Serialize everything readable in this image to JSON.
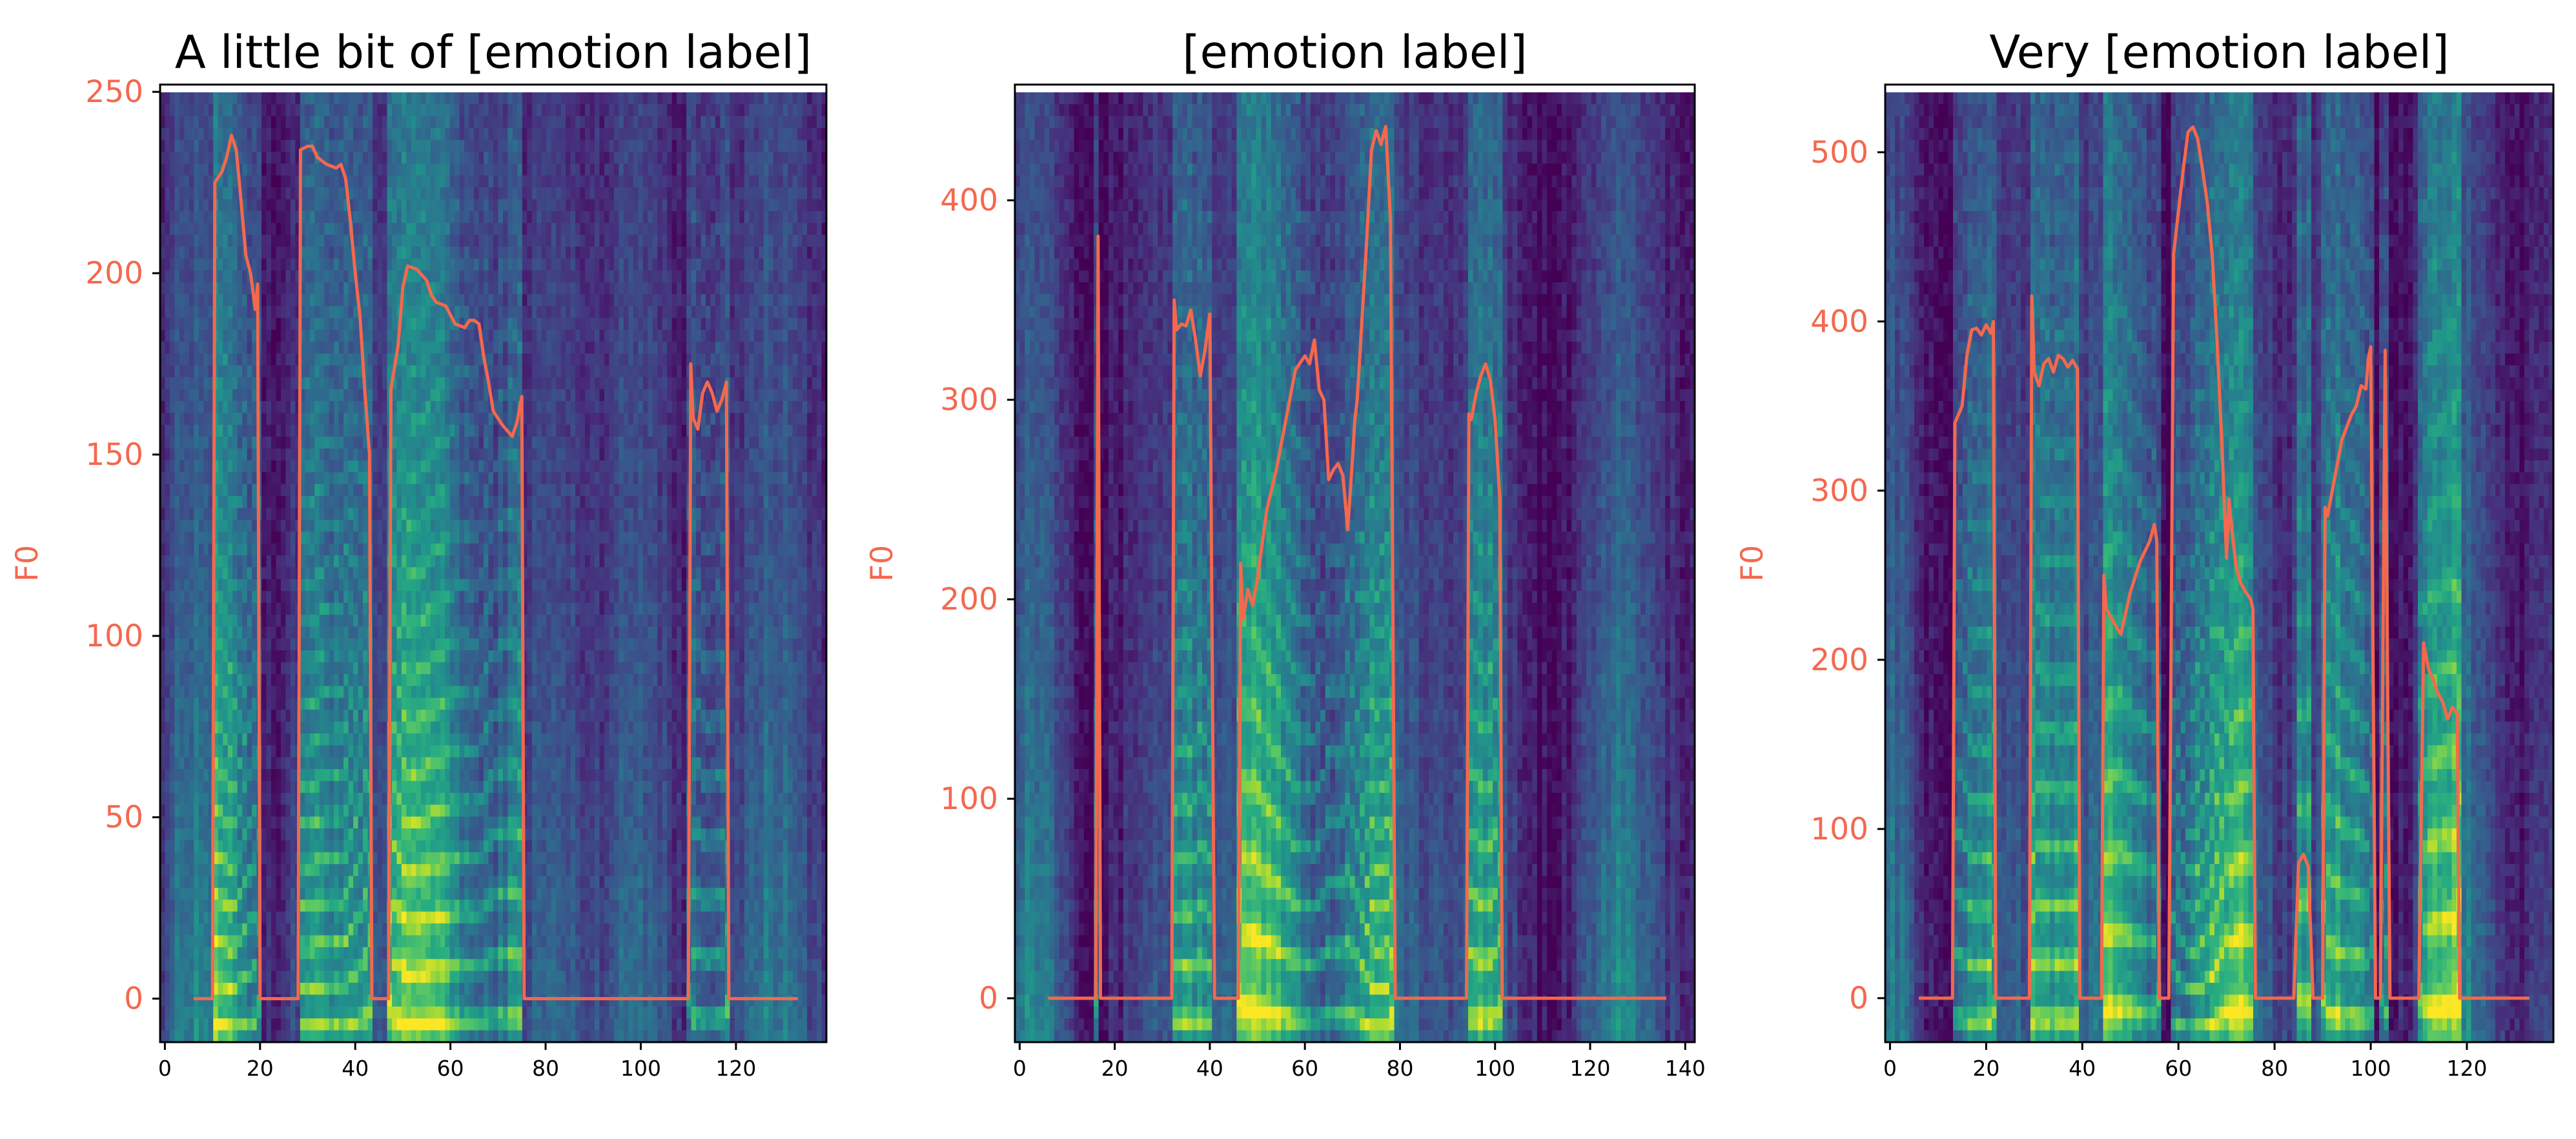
{
  "figure": {
    "f0_color": "#f4684e",
    "spec_colors": [
      "#440154",
      "#472d7b",
      "#3b528b",
      "#2c728e",
      "#21918c",
      "#28ae80",
      "#5ec962",
      "#addc30",
      "#fde725"
    ]
  },
  "chart_data": [
    {
      "type": "line",
      "title": "A little bit of [emotion label]",
      "xlabel": "",
      "ylabel": "F0",
      "xlim": [
        -1,
        139
      ],
      "ylim": [
        -12,
        252
      ],
      "xticks": [
        0,
        20,
        40,
        60,
        80,
        100,
        120
      ],
      "yticks": [
        0,
        50,
        100,
        150,
        200,
        250
      ],
      "background": "mel-spectrogram (viridis)",
      "series": [
        {
          "x": [
            6,
            10,
            10.5,
            12,
            13,
            14,
            15,
            16,
            17,
            18,
            19,
            19.5,
            20,
            20.5,
            26,
            28,
            28.5,
            30,
            31,
            32,
            34,
            36,
            37,
            38,
            39,
            40,
            41,
            42,
            43,
            43.5,
            47,
            47.5,
            49,
            50,
            51,
            53,
            55,
            56,
            57,
            59,
            61,
            63,
            64,
            65,
            66,
            67,
            68,
            69,
            71,
            73,
            74,
            75,
            75.5,
            109,
            110,
            110.5,
            111,
            112,
            113,
            114,
            115,
            116,
            117,
            118,
            118.5,
            133
          ],
          "y": [
            0,
            0,
            225,
            228,
            232,
            238,
            234,
            220,
            205,
            200,
            190,
            197,
            0,
            0,
            0,
            0,
            234,
            235,
            235,
            232,
            230,
            229,
            230,
            226,
            214,
            200,
            188,
            168,
            150,
            0,
            0,
            168,
            180,
            196,
            202,
            201,
            198,
            194,
            192,
            191,
            186,
            185,
            187,
            187,
            186,
            177,
            170,
            162,
            158,
            155,
            159,
            166,
            0,
            0,
            0,
            175,
            160,
            157,
            167,
            170,
            167,
            162,
            165,
            170,
            0,
            0
          ]
        }
      ]
    },
    {
      "type": "line",
      "title": "[emotion label]",
      "xlabel": "",
      "ylabel": "F0",
      "xlim": [
        -1,
        142
      ],
      "ylim": [
        -22,
        458
      ],
      "xticks": [
        0,
        20,
        40,
        60,
        80,
        100,
        120,
        140
      ],
      "yticks": [
        0,
        100,
        200,
        300,
        400
      ],
      "background": "mel-spectrogram (viridis)",
      "series": [
        {
          "x": [
            6,
            16,
            16.5,
            17,
            32,
            32.5,
            33,
            34,
            35,
            36,
            37,
            38,
            39,
            40,
            41,
            41.5,
            45,
            46,
            46.5,
            47,
            48,
            49,
            50,
            52,
            54,
            56,
            58,
            60,
            61,
            62,
            63,
            64,
            65,
            66,
            67,
            68,
            69,
            70,
            70.5,
            71,
            72,
            73,
            74,
            75,
            76,
            77,
            78,
            79,
            80,
            80.5,
            94,
            94.5,
            95,
            96,
            97,
            98,
            99,
            100,
            101,
            101.5,
            136
          ],
          "y": [
            0,
            0,
            382,
            0,
            0,
            350,
            335,
            338,
            337,
            345,
            330,
            312,
            325,
            343,
            0,
            0,
            0,
            0,
            218,
            190,
            205,
            197,
            210,
            245,
            265,
            290,
            315,
            322,
            318,
            330,
            305,
            300,
            260,
            265,
            268,
            262,
            235,
            270,
            290,
            300,
            340,
            380,
            425,
            435,
            428,
            437,
            390,
            0,
            0,
            0,
            0,
            293,
            290,
            303,
            312,
            318,
            310,
            290,
            250,
            0,
            0
          ]
        }
      ]
    },
    {
      "type": "line",
      "title": "Very [emotion label]",
      "xlabel": "",
      "ylabel": "F0",
      "xlim": [
        -1,
        138
      ],
      "ylim": [
        -26,
        540
      ],
      "xticks": [
        0,
        20,
        40,
        60,
        80,
        100,
        120
      ],
      "yticks": [
        0,
        100,
        200,
        300,
        400,
        500
      ],
      "background": "mel-spectrogram (viridis)",
      "series": [
        {
          "x": [
            6,
            13,
            13.5,
            15,
            16,
            17,
            18,
            19,
            20,
            21,
            21.5,
            22,
            28,
            29,
            29.5,
            30,
            31,
            32,
            33,
            34,
            35,
            36,
            37,
            38,
            39,
            39.5,
            40,
            44,
            44.5,
            45,
            46,
            47,
            48,
            50,
            52,
            54,
            55,
            55.5,
            56,
            57,
            58,
            59,
            60,
            61,
            62,
            63,
            64,
            65,
            66,
            67,
            68,
            69,
            70,
            70.5,
            71,
            72,
            73,
            74,
            75,
            75.5,
            76,
            84,
            85,
            86,
            87,
            88,
            89,
            90,
            90.5,
            91,
            92,
            94,
            96,
            97,
            98,
            99,
            99.5,
            100,
            101,
            101.5,
            102,
            103,
            104,
            104.5,
            110,
            111,
            112,
            113,
            114,
            115,
            116,
            117,
            118,
            118.5,
            133
          ],
          "y": [
            0,
            0,
            340,
            350,
            380,
            395,
            396,
            392,
            398,
            393,
            400,
            0,
            0,
            0,
            415,
            370,
            362,
            375,
            378,
            370,
            380,
            378,
            373,
            377,
            372,
            0,
            0,
            0,
            250,
            230,
            225,
            220,
            215,
            240,
            258,
            270,
            280,
            270,
            0,
            0,
            0,
            440,
            465,
            490,
            512,
            515,
            508,
            490,
            470,
            440,
            390,
            330,
            260,
            295,
            280,
            255,
            245,
            240,
            236,
            230,
            0,
            0,
            80,
            85,
            78,
            0,
            0,
            0,
            290,
            285,
            300,
            330,
            345,
            350,
            362,
            360,
            378,
            385,
            0,
            0,
            0,
            383,
            0,
            0,
            0,
            210,
            195,
            188,
            180,
            175,
            165,
            172,
            168,
            0,
            0
          ]
        }
      ]
    }
  ]
}
